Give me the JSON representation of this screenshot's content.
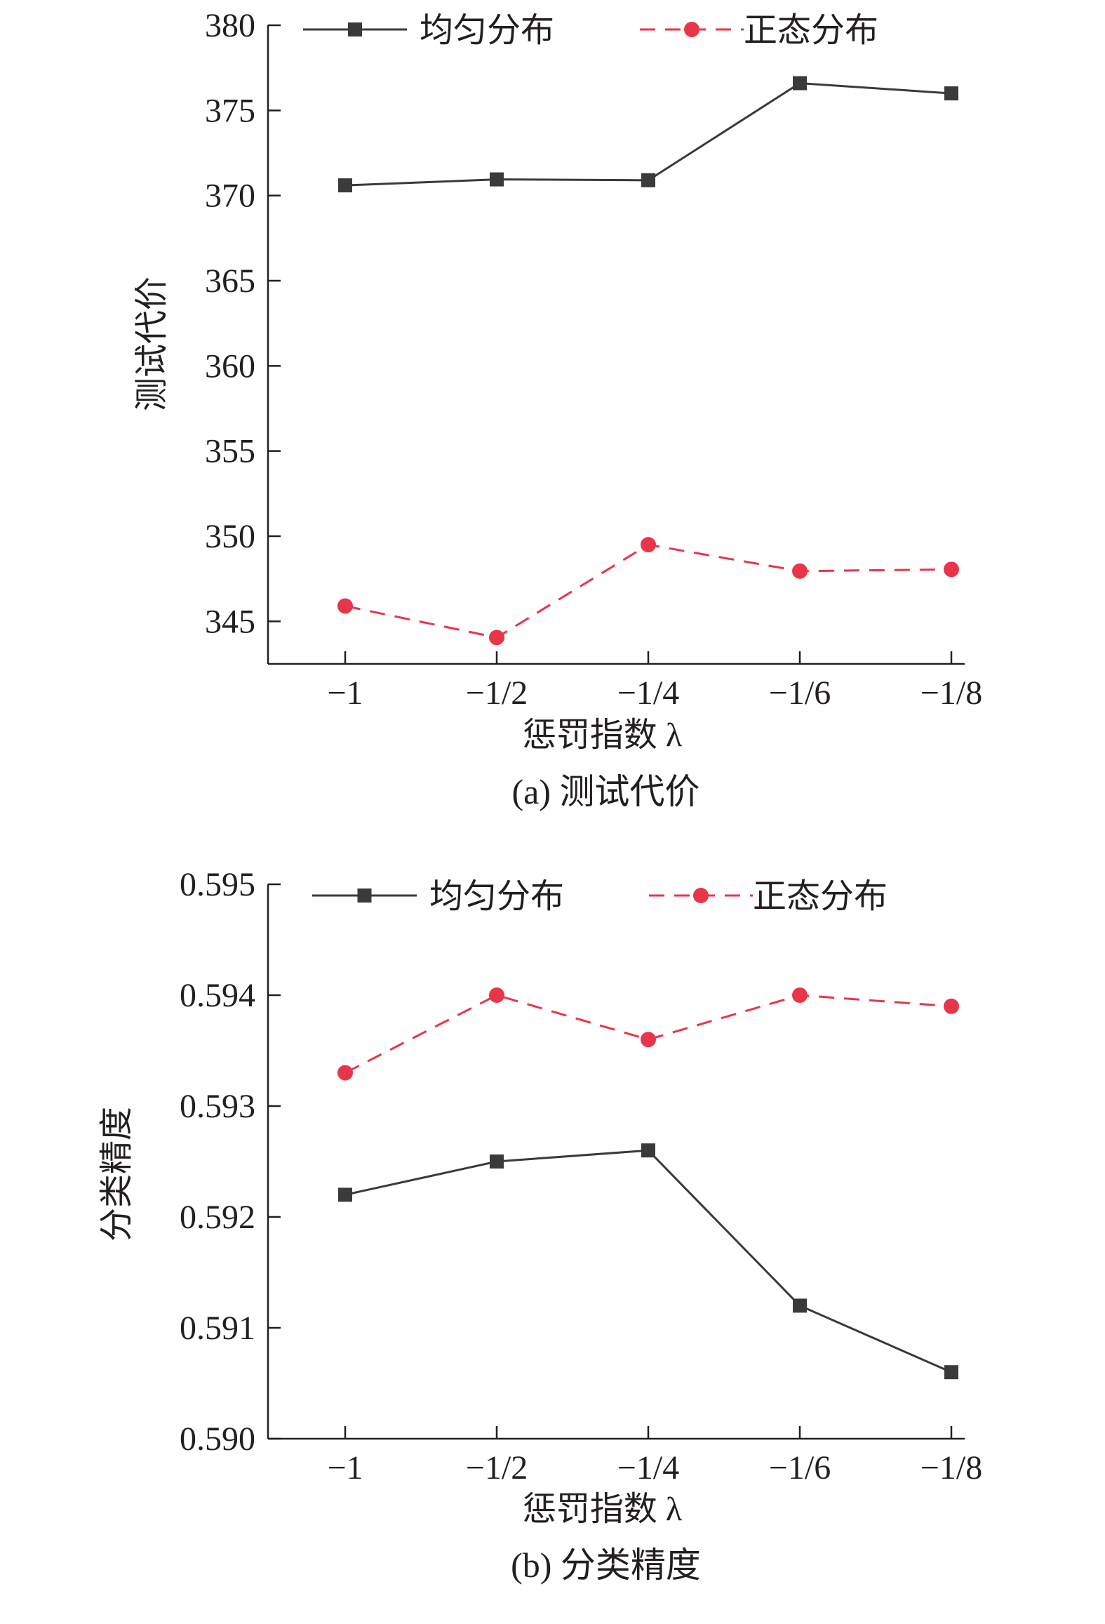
{
  "chart_data": [
    {
      "type": "line",
      "caption": "(a) 测试代价",
      "ylabel": "测试代价",
      "xlabel": "惩罚指数 λ",
      "categories": [
        "−1",
        "−1/2",
        "−1/4",
        "−1/6",
        "−1/8"
      ],
      "ylim": [
        342.5,
        380
      ],
      "yticks": [
        345,
        350,
        355,
        360,
        365,
        370,
        375,
        380
      ],
      "ytick_labels": [
        "345",
        "350",
        "355",
        "360",
        "365",
        "370",
        "375",
        "380"
      ],
      "grid": false,
      "legend_position": "top",
      "series": [
        {
          "name": "均匀分布",
          "values": [
            370.6,
            370.95,
            370.9,
            376.6,
            376.0
          ],
          "color": "#3a3a3a",
          "line": "solid",
          "marker": "square"
        },
        {
          "name": "正态分布",
          "values": [
            345.9,
            344.05,
            349.5,
            347.95,
            348.05
          ],
          "color": "#e8354a",
          "line": "dashed",
          "marker": "circle"
        }
      ]
    },
    {
      "type": "line",
      "caption": "(b) 分类精度",
      "ylabel": "分类精度",
      "xlabel": "惩罚指数 λ",
      "categories": [
        "−1",
        "−1/2",
        "−1/4",
        "−1/6",
        "−1/8"
      ],
      "ylim": [
        0.59,
        0.595
      ],
      "yticks": [
        0.59,
        0.591,
        0.592,
        0.593,
        0.594,
        0.595
      ],
      "ytick_labels": [
        "0.590",
        "0.591",
        "0.592",
        "0.593",
        "0.594",
        "0.595"
      ],
      "grid": false,
      "legend_position": "top",
      "series": [
        {
          "name": "均匀分布",
          "values": [
            0.5922,
            0.5925,
            0.5926,
            0.5912,
            0.5906
          ],
          "color": "#3a3a3a",
          "line": "solid",
          "marker": "square"
        },
        {
          "name": "正态分布",
          "values": [
            0.5933,
            0.594,
            0.5936,
            0.594,
            0.5939
          ],
          "color": "#e8354a",
          "line": "dashed",
          "marker": "circle"
        }
      ]
    }
  ]
}
